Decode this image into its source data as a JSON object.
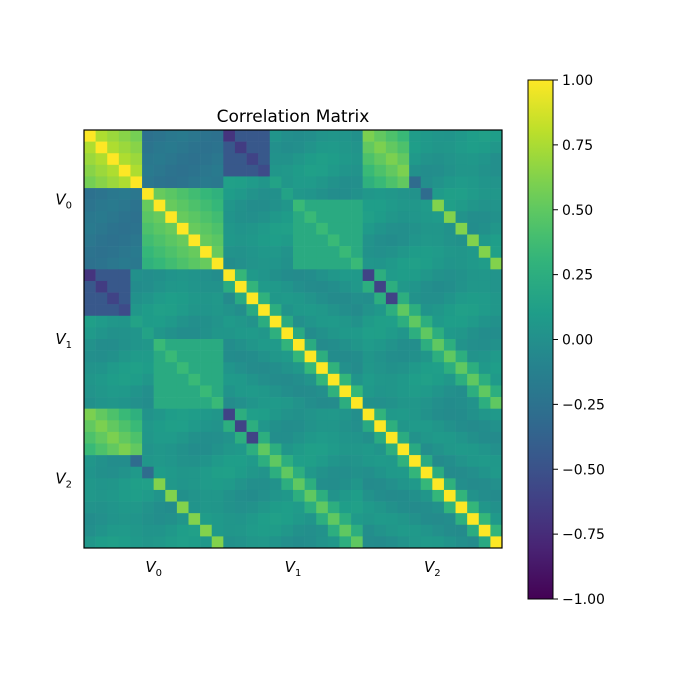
{
  "chart_data": {
    "type": "heatmap",
    "title": "Correlation Matrix",
    "n": 36,
    "block_size": 12,
    "blocks": [
      "V_0",
      "V_1",
      "V_2"
    ],
    "x_tick_labels": [
      {
        "base": "V",
        "sub": "0"
      },
      {
        "base": "V",
        "sub": "1"
      },
      {
        "base": "V",
        "sub": "2"
      }
    ],
    "y_tick_labels": [
      {
        "base": "V",
        "sub": "0"
      },
      {
        "base": "V",
        "sub": "1"
      },
      {
        "base": "V",
        "sub": "2"
      }
    ],
    "colorbar": {
      "min": -1.0,
      "max": 1.0,
      "ticks": [
        "1.00",
        "0.75",
        "0.50",
        "0.25",
        "0.00",
        "−0.25",
        "−0.50",
        "−0.75",
        "−1.00"
      ],
      "tick_values": [
        1.0,
        0.75,
        0.5,
        0.25,
        0.0,
        -0.25,
        -0.5,
        -0.75,
        -1.0
      ]
    },
    "colormap": "viridis",
    "xlabel": "",
    "ylabel": "",
    "grid": false
  }
}
